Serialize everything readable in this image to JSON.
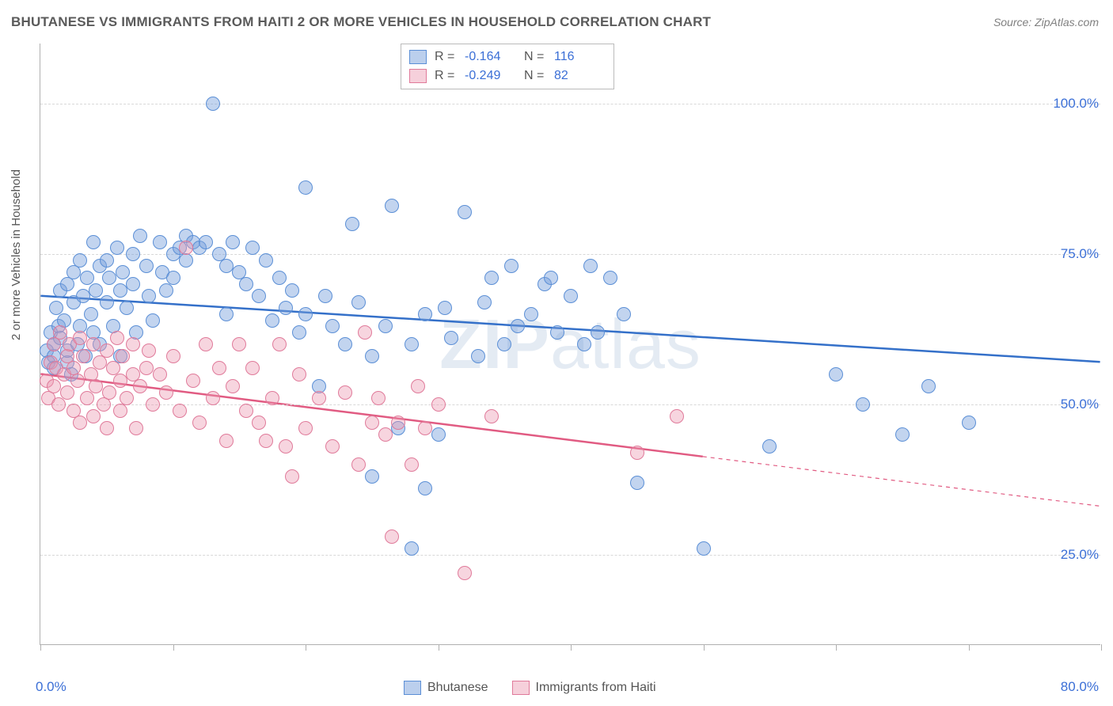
{
  "title": "BHUTANESE VS IMMIGRANTS FROM HAITI 2 OR MORE VEHICLES IN HOUSEHOLD CORRELATION CHART",
  "source": "Source: ZipAtlas.com",
  "ylabel": "2 or more Vehicles in Household",
  "watermark": "ZIPatlas",
  "chart": {
    "type": "scatter",
    "xlim": [
      0,
      80
    ],
    "ylim": [
      10,
      110
    ],
    "xtick_positions": [
      0,
      10,
      20,
      30,
      40,
      50,
      60,
      70,
      80
    ],
    "xtick_labels": {
      "0": "0.0%",
      "80": "80.0%"
    },
    "ytick_positions": [
      25,
      50,
      75,
      100
    ],
    "ytick_labels": {
      "25": "25.0%",
      "50": "50.0%",
      "75": "75.0%",
      "100": "100.0%"
    },
    "grid_color": "#d8d8d8",
    "background_color": "#ffffff",
    "marker_radius": 9,
    "series": [
      {
        "name": "Bhutanese",
        "color_fill": "rgba(120,160,220,0.45)",
        "color_stroke": "#5b8fd6",
        "R": "-0.164",
        "N": "116",
        "trend": {
          "x1": 0,
          "y1": 68,
          "x2": 80,
          "y2": 57,
          "color": "#3470c9",
          "width": 2.5,
          "dash": null,
          "ext_x1": null
        },
        "points": [
          [
            0.5,
            59
          ],
          [
            0.6,
            57
          ],
          [
            0.8,
            62
          ],
          [
            1,
            58
          ],
          [
            1,
            60
          ],
          [
            1,
            56
          ],
          [
            1.2,
            66
          ],
          [
            1.4,
            63
          ],
          [
            1.5,
            69
          ],
          [
            1.5,
            61
          ],
          [
            1.8,
            64
          ],
          [
            2,
            57
          ],
          [
            2,
            70
          ],
          [
            2,
            59
          ],
          [
            2.3,
            55
          ],
          [
            2.5,
            72
          ],
          [
            2.5,
            67
          ],
          [
            2.8,
            60
          ],
          [
            3,
            63
          ],
          [
            3,
            74
          ],
          [
            3.2,
            68
          ],
          [
            3.4,
            58
          ],
          [
            3.5,
            71
          ],
          [
            3.8,
            65
          ],
          [
            4,
            62
          ],
          [
            4,
            77
          ],
          [
            4.2,
            69
          ],
          [
            4.5,
            73
          ],
          [
            4.5,
            60
          ],
          [
            5,
            67
          ],
          [
            5,
            74
          ],
          [
            5.2,
            71
          ],
          [
            5.5,
            63
          ],
          [
            5.8,
            76
          ],
          [
            6,
            69
          ],
          [
            6,
            58
          ],
          [
            6.2,
            72
          ],
          [
            6.5,
            66
          ],
          [
            7,
            75
          ],
          [
            7,
            70
          ],
          [
            7.2,
            62
          ],
          [
            7.5,
            78
          ],
          [
            8,
            73
          ],
          [
            8.2,
            68
          ],
          [
            8.5,
            64
          ],
          [
            9,
            77
          ],
          [
            9.2,
            72
          ],
          [
            9.5,
            69
          ],
          [
            10,
            75
          ],
          [
            10,
            71
          ],
          [
            10.5,
            76
          ],
          [
            11,
            78
          ],
          [
            11,
            74
          ],
          [
            11.5,
            77
          ],
          [
            12,
            76
          ],
          [
            12.5,
            77
          ],
          [
            13,
            100
          ],
          [
            13.5,
            75
          ],
          [
            14,
            73
          ],
          [
            14,
            65
          ],
          [
            14.5,
            77
          ],
          [
            15,
            72
          ],
          [
            15.5,
            70
          ],
          [
            16,
            76
          ],
          [
            16.5,
            68
          ],
          [
            17,
            74
          ],
          [
            17.5,
            64
          ],
          [
            18,
            71
          ],
          [
            18.5,
            66
          ],
          [
            19,
            69
          ],
          [
            19.5,
            62
          ],
          [
            20,
            86
          ],
          [
            20,
            65
          ],
          [
            21,
            53
          ],
          [
            21.5,
            68
          ],
          [
            22,
            63
          ],
          [
            23,
            60
          ],
          [
            23.5,
            80
          ],
          [
            24,
            67
          ],
          [
            25,
            38
          ],
          [
            25,
            58
          ],
          [
            26,
            63
          ],
          [
            26.5,
            83
          ],
          [
            27,
            46
          ],
          [
            28,
            60
          ],
          [
            28,
            26
          ],
          [
            29,
            36
          ],
          [
            29,
            65
          ],
          [
            30,
            45
          ],
          [
            30.5,
            66
          ],
          [
            31,
            61
          ],
          [
            32,
            82
          ],
          [
            33,
            58
          ],
          [
            33.5,
            67
          ],
          [
            34,
            71
          ],
          [
            35,
            60
          ],
          [
            35.5,
            73
          ],
          [
            36,
            63
          ],
          [
            37,
            65
          ],
          [
            38,
            70
          ],
          [
            38.5,
            71
          ],
          [
            39,
            62
          ],
          [
            40,
            68
          ],
          [
            41,
            60
          ],
          [
            41.5,
            73
          ],
          [
            42,
            62
          ],
          [
            43,
            71
          ],
          [
            44,
            65
          ],
          [
            45,
            37
          ],
          [
            50,
            26
          ],
          [
            55,
            43
          ],
          [
            60,
            55
          ],
          [
            62,
            50
          ],
          [
            65,
            45
          ],
          [
            67,
            53
          ],
          [
            70,
            47
          ]
        ]
      },
      {
        "name": "Immigrants from Haiti",
        "color_fill": "rgba(235,150,175,0.4)",
        "color_stroke": "#e07a9a",
        "R": "-0.249",
        "N": "82",
        "trend": {
          "x1": 0,
          "y1": 55,
          "x2": 80,
          "y2": 33,
          "color": "#e15b82",
          "width": 2.5,
          "solid_until_x": 50
        },
        "points": [
          [
            0.5,
            54
          ],
          [
            0.6,
            51
          ],
          [
            0.8,
            57
          ],
          [
            1,
            53
          ],
          [
            1,
            60
          ],
          [
            1.2,
            56
          ],
          [
            1.4,
            50
          ],
          [
            1.5,
            62
          ],
          [
            1.8,
            55
          ],
          [
            2,
            58
          ],
          [
            2,
            52
          ],
          [
            2.2,
            60
          ],
          [
            2.5,
            56
          ],
          [
            2.5,
            49
          ],
          [
            2.8,
            54
          ],
          [
            3,
            47
          ],
          [
            3,
            61
          ],
          [
            3.2,
            58
          ],
          [
            3.5,
            51
          ],
          [
            3.8,
            55
          ],
          [
            4,
            48
          ],
          [
            4,
            60
          ],
          [
            4.2,
            53
          ],
          [
            4.5,
            57
          ],
          [
            4.8,
            50
          ],
          [
            5,
            59
          ],
          [
            5,
            46
          ],
          [
            5.2,
            52
          ],
          [
            5.5,
            56
          ],
          [
            5.8,
            61
          ],
          [
            6,
            49
          ],
          [
            6,
            54
          ],
          [
            6.2,
            58
          ],
          [
            6.5,
            51
          ],
          [
            7,
            55
          ],
          [
            7,
            60
          ],
          [
            7.2,
            46
          ],
          [
            7.5,
            53
          ],
          [
            8,
            56
          ],
          [
            8.2,
            59
          ],
          [
            8.5,
            50
          ],
          [
            9,
            55
          ],
          [
            9.5,
            52
          ],
          [
            10,
            58
          ],
          [
            10.5,
            49
          ],
          [
            11,
            76
          ],
          [
            11.5,
            54
          ],
          [
            12,
            47
          ],
          [
            12.5,
            60
          ],
          [
            13,
            51
          ],
          [
            13.5,
            56
          ],
          [
            14,
            44
          ],
          [
            14.5,
            53
          ],
          [
            15,
            60
          ],
          [
            15.5,
            49
          ],
          [
            16,
            56
          ],
          [
            16.5,
            47
          ],
          [
            17,
            44
          ],
          [
            17.5,
            51
          ],
          [
            18,
            60
          ],
          [
            18.5,
            43
          ],
          [
            19,
            38
          ],
          [
            19.5,
            55
          ],
          [
            20,
            46
          ],
          [
            21,
            51
          ],
          [
            22,
            43
          ],
          [
            23,
            52
          ],
          [
            24,
            40
          ],
          [
            24.5,
            62
          ],
          [
            25,
            47
          ],
          [
            25.5,
            51
          ],
          [
            26,
            45
          ],
          [
            26.5,
            28
          ],
          [
            27,
            47
          ],
          [
            28,
            40
          ],
          [
            28.5,
            53
          ],
          [
            29,
            46
          ],
          [
            30,
            50
          ],
          [
            32,
            22
          ],
          [
            34,
            48
          ],
          [
            45,
            42
          ],
          [
            48,
            48
          ]
        ]
      }
    ]
  },
  "legend": {
    "items": [
      {
        "swatch": "blue",
        "label": "Bhutanese"
      },
      {
        "swatch": "pink",
        "label": "Immigrants from Haiti"
      }
    ]
  }
}
